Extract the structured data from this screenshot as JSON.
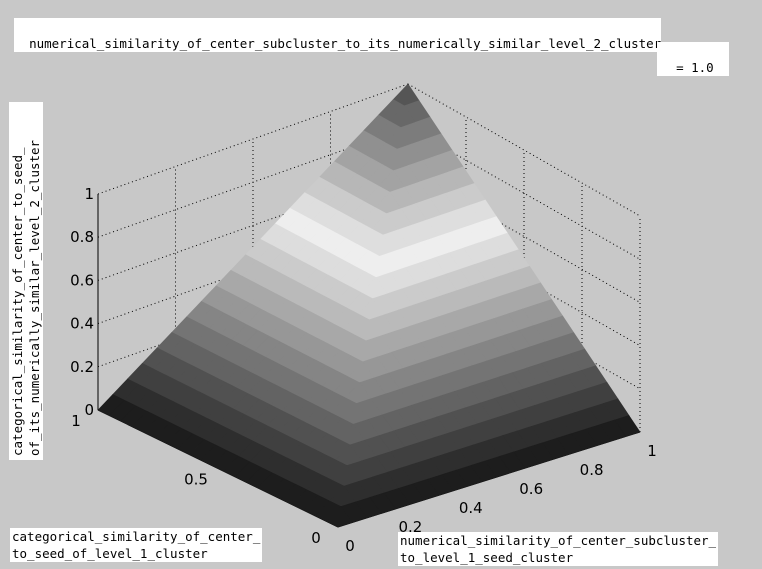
{
  "chart_data": {
    "type": "surface",
    "title": "numerical_similarity_of_center_subcluster_to_its_numerically_similar_level_2_cluster",
    "parameter": "= 1.0",
    "xlabel": [
      "numerical_similarity_of_center_subcluster_",
      "to_level_1_seed_cluster"
    ],
    "ylabel": [
      "categorical_similarity_of_center_",
      "to_seed_of_level_1_cluster"
    ],
    "zlabel": [
      "categorical_similarity_of_center_to_seed_",
      "of_its_numerically_similar_level_2_cluster"
    ],
    "x_ticks": [
      "0",
      "0.2",
      "0.4",
      "0.6",
      "0.8",
      "1"
    ],
    "y_ticks": [
      "0",
      "0.5",
      "1"
    ],
    "z_ticks": [
      "0",
      "0.2",
      "0.4",
      "0.6",
      "0.8",
      "1"
    ],
    "xlim": [
      0,
      1
    ],
    "ylim": [
      0,
      1
    ],
    "zlim": [
      0,
      1
    ],
    "grid": true,
    "colormap": "gray",
    "surface_description": "pyramid z = min(x, y): value 0 along the x=0 and y=0 edges, rising linearly to 1 at the corner (1,1)",
    "grid_resolution": 21
  },
  "colors": {
    "background": "#c8c8c8",
    "surface_low": "#141414",
    "surface_high": "#f0f0f0"
  }
}
